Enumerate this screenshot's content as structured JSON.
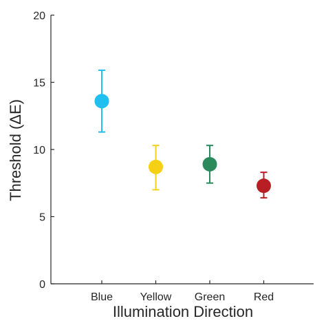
{
  "chart_data": {
    "type": "scatter",
    "title": "",
    "xlabel": "Illumination Direction",
    "ylabel": "Threshold (ΔE)",
    "categories": [
      "Blue",
      "Yellow",
      "Green",
      "Red"
    ],
    "ylim": [
      0,
      20
    ],
    "yticks": [
      0,
      5,
      10,
      15,
      20
    ],
    "grid": false,
    "legend": "none",
    "points": [
      {
        "category": "Blue",
        "value": 13.6,
        "error_low": 11.3,
        "error_high": 15.9,
        "color": "#1fbff0"
      },
      {
        "category": "Yellow",
        "value": 8.7,
        "error_low": 7.0,
        "error_high": 10.3,
        "color": "#f6d012"
      },
      {
        "category": "Green",
        "value": 8.9,
        "error_low": 7.5,
        "error_high": 10.3,
        "color": "#2a8a5c"
      },
      {
        "category": "Red",
        "value": 7.3,
        "error_low": 6.4,
        "error_high": 8.3,
        "color": "#b81f25"
      }
    ]
  }
}
